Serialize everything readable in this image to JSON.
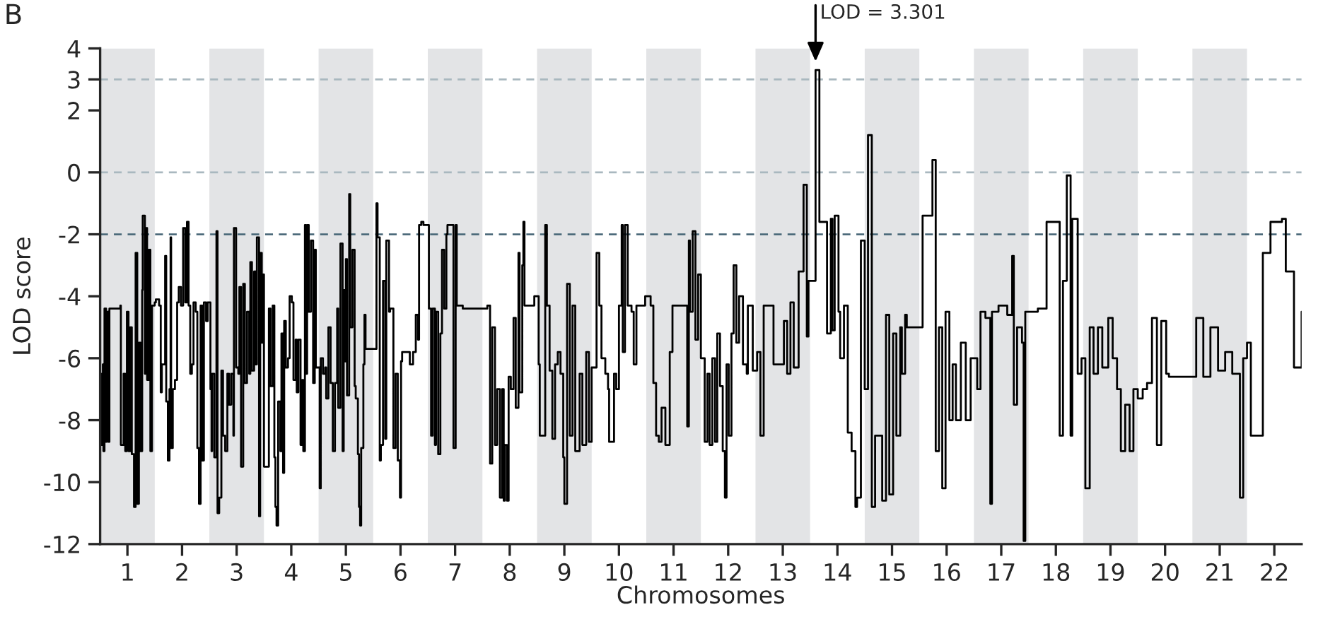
{
  "chart_data": {
    "type": "step",
    "xlabel": "Chromosomes",
    "ylabel": "LOD score",
    "xlim": [
      0.5,
      22.5
    ],
    "ylim": [
      -12,
      4
    ],
    "yticks": [
      4,
      3,
      2,
      0,
      -2,
      -4,
      -6,
      -8,
      -10,
      -12
    ],
    "xticks": [
      1,
      2,
      3,
      4,
      5,
      6,
      7,
      8,
      9,
      10,
      11,
      12,
      13,
      14,
      15,
      16,
      17,
      18,
      19,
      20,
      21,
      22
    ],
    "grid": false,
    "line_style": "solid",
    "marker": "none",
    "bands": [
      {
        "axis": "x",
        "from": 0.5,
        "to": 1.5,
        "color": "#e3e4e6"
      },
      {
        "axis": "x",
        "from": 2.5,
        "to": 3.5,
        "color": "#e3e4e6"
      },
      {
        "axis": "x",
        "from": 4.5,
        "to": 5.5,
        "color": "#e3e4e6"
      },
      {
        "axis": "x",
        "from": 6.5,
        "to": 7.5,
        "color": "#e3e4e6"
      },
      {
        "axis": "x",
        "from": 8.5,
        "to": 9.5,
        "color": "#e3e4e6"
      },
      {
        "axis": "x",
        "from": 10.5,
        "to": 11.5,
        "color": "#e3e4e6"
      },
      {
        "axis": "x",
        "from": 12.5,
        "to": 13.5,
        "color": "#e3e4e6"
      },
      {
        "axis": "x",
        "from": 14.5,
        "to": 15.5,
        "color": "#e3e4e6"
      },
      {
        "axis": "x",
        "from": 16.5,
        "to": 17.5,
        "color": "#e3e4e6"
      },
      {
        "axis": "x",
        "from": 18.5,
        "to": 19.5,
        "color": "#e3e4e6"
      },
      {
        "axis": "x",
        "from": 20.5,
        "to": 21.5,
        "color": "#e3e4e6"
      }
    ],
    "ref_lines": [
      {
        "axis": "y",
        "value": 3,
        "color": "#a9b8bf",
        "line_style": "dashed"
      },
      {
        "axis": "y",
        "value": 0,
        "color": "#a9b8bf",
        "line_style": "dashed"
      },
      {
        "axis": "y",
        "value": -2,
        "color": "#4d6b7b",
        "line_style": "dashed"
      }
    ],
    "annotations": [
      "B",
      {
        "text": "LOD = 3.301",
        "x": 13.6,
        "y": 3.301
      }
    ],
    "series": [
      {
        "color": "#000000",
        "x": [
          0.5,
          0.52,
          0.55,
          0.56,
          0.58,
          0.61,
          0.62,
          0.65,
          0.67,
          0.87,
          0.88,
          0.93,
          0.96,
          0.99,
          1.02,
          1.05,
          1.08,
          1.12,
          1.15,
          1.18,
          1.21,
          1.24,
          1.27,
          1.28,
          1.32,
          1.33,
          1.36,
          1.39,
          1.42,
          1.45,
          1.5,
          1.52,
          1.58,
          1.61,
          1.63,
          1.67,
          1.69,
          1.71,
          1.74,
          1.77,
          1.79,
          1.8,
          1.83,
          1.87,
          1.91,
          1.94,
          1.98,
          2.02,
          2.06,
          2.09,
          2.12,
          2.15,
          2.18,
          2.21,
          2.25,
          2.28,
          2.31,
          2.34,
          2.37,
          2.4,
          2.44,
          2.47,
          2.52,
          2.54,
          2.55,
          2.59,
          2.63,
          2.65,
          2.68,
          2.72,
          2.75,
          2.79,
          2.83,
          2.86,
          2.9,
          2.94,
          2.95,
          2.99,
          3.03,
          3.05,
          3.08,
          3.12,
          3.15,
          3.19,
          3.23,
          3.25,
          3.28,
          3.32,
          3.35,
          3.37,
          3.41,
          3.43,
          3.46,
          3.48,
          3.5,
          3.59,
          3.62,
          3.66,
          3.69,
          3.71,
          3.73,
          3.76,
          3.8,
          3.82,
          3.85,
          3.87,
          3.9,
          3.94,
          3.97,
          4.01,
          4.04,
          4.08,
          4.1,
          4.13,
          4.17,
          4.2,
          4.22,
          4.25,
          4.27,
          4.29,
          4.32,
          4.36,
          4.4,
          4.43,
          4.45,
          4.52,
          4.54,
          4.58,
          4.62,
          4.64,
          4.68,
          4.72,
          4.76,
          4.8,
          4.84,
          4.86,
          4.9,
          4.94,
          4.96,
          4.98,
          5.0,
          5.02,
          5.06,
          5.08,
          5.12,
          5.16,
          5.18,
          5.22,
          5.24,
          5.26,
          5.28,
          5.32,
          5.34,
          5.36,
          5.56,
          5.58,
          5.62,
          5.64,
          5.68,
          5.72,
          5.74,
          5.79,
          5.81,
          5.87,
          5.91,
          5.95,
          5.99,
          6.01,
          6.03,
          6.11,
          6.17,
          6.23,
          6.28,
          6.32,
          6.34,
          6.38,
          6.42,
          6.48,
          6.52,
          6.56,
          6.59,
          6.63,
          6.65,
          6.69,
          6.73,
          6.76,
          6.8,
          6.84,
          6.86,
          6.95,
          6.97,
          7.01,
          7.03,
          7.14,
          7.59,
          7.64,
          7.68,
          7.73,
          7.77,
          7.82,
          7.86,
          7.89,
          7.91,
          7.95,
          7.98,
          8.02,
          8.07,
          8.11,
          8.16,
          8.18,
          8.23,
          8.25,
          8.27,
          8.39,
          8.45,
          8.53,
          8.55,
          8.6,
          8.65,
          8.68,
          8.73,
          8.78,
          8.83,
          8.88,
          8.93,
          8.98,
          9.0,
          9.05,
          9.1,
          9.15,
          9.2,
          9.28,
          9.33,
          9.4,
          9.45,
          9.5,
          9.59,
          9.64,
          9.68,
          9.75,
          9.8,
          9.82,
          9.86,
          9.91,
          9.95,
          10.0,
          10.05,
          10.07,
          10.11,
          10.16,
          10.23,
          10.27,
          10.32,
          10.41,
          10.48,
          10.58,
          10.63,
          10.68,
          10.73,
          10.78,
          10.85,
          10.93,
          10.98,
          11.08,
          11.13,
          11.18,
          11.25,
          11.28,
          11.3,
          11.35,
          11.4,
          11.45,
          11.5,
          11.57,
          11.62,
          11.66,
          11.71,
          11.76,
          11.8,
          11.85,
          11.9,
          11.94,
          11.97,
          12.01,
          12.06,
          12.1,
          12.15,
          12.2,
          12.27,
          12.34,
          12.36,
          12.43,
          12.45,
          12.53,
          12.59,
          12.65,
          12.77,
          12.83,
          12.95,
          13.02,
          13.08,
          13.14,
          13.2,
          13.29,
          13.38,
          13.44,
          13.47,
          13.5,
          13.6,
          13.64,
          13.67,
          13.78,
          13.81,
          13.88,
          13.91,
          13.95,
          14.02,
          14.05,
          14.12,
          14.19,
          14.26,
          14.33,
          14.36,
          14.43,
          14.5,
          14.56,
          14.63,
          14.69,
          14.76,
          14.82,
          14.89,
          14.95,
          15.02,
          15.08,
          15.15,
          15.18,
          15.24,
          15.27,
          15.56,
          15.68,
          15.74,
          15.8,
          15.86,
          15.92,
          15.98,
          16.05,
          16.11,
          16.17,
          16.26,
          16.35,
          16.44,
          16.56,
          16.62,
          16.71,
          16.8,
          16.83,
          16.95,
          17.11,
          17.2,
          17.23,
          17.29,
          17.38,
          17.41,
          17.44,
          17.57,
          17.67,
          17.83,
          18.0,
          18.07,
          18.13,
          18.2,
          18.27,
          18.3,
          18.4,
          18.47,
          18.54,
          18.62,
          18.69,
          18.77,
          18.85,
          18.96,
          19.04,
          19.12,
          19.19,
          19.27,
          19.35,
          19.42,
          19.5,
          19.59,
          19.67,
          19.76,
          19.85,
          19.93,
          20.02,
          20.07,
          20.57,
          20.7,
          20.83,
          20.97,
          21.1,
          21.23,
          21.37,
          21.43,
          21.5,
          21.57,
          21.79,
          21.93,
          22.14,
          22.21,
          22.36,
          22.5
        ],
        "values": [
          -6.5,
          -8.8,
          -6.2,
          -9,
          -4.4,
          -8.7,
          -4.5,
          -8.7,
          -4.4,
          -4.3,
          -8.8,
          -6.5,
          -9.0,
          -4.5,
          -9,
          -5,
          -9.1,
          -10.8,
          -2.6,
          -10.7,
          -5.5,
          -9,
          -3.8,
          -1.4,
          -6.5,
          -1.8,
          -6.7,
          -2.5,
          -9,
          -4.3,
          -4.2,
          -4.1,
          -4.3,
          -7.1,
          -6.2,
          -6.2,
          -2.7,
          -7.4,
          -9.3,
          -7,
          -2.1,
          -8.9,
          -7,
          -6.7,
          -4.2,
          -3.7,
          -4.3,
          -1.8,
          -4.2,
          -1.6,
          -4.3,
          -6.5,
          -6.2,
          -4.2,
          -4.5,
          -8.9,
          -10.7,
          -4.3,
          -9.3,
          -4.2,
          -4.8,
          -4.2,
          -7,
          -9,
          -6.5,
          -9.2,
          -1.9,
          -11,
          -10.5,
          -6.4,
          -8.5,
          -9,
          -6.5,
          -7.5,
          -6.5,
          -8.5,
          -1.8,
          -6.3,
          -6.5,
          -3.7,
          -9.5,
          -3.6,
          -6.8,
          -4.5,
          -6.5,
          -2.9,
          -6.4,
          -3.2,
          -6.2,
          -2.1,
          -11.1,
          -2.6,
          -5.5,
          -3.3,
          -9.5,
          -4.4,
          -6.9,
          -4.3,
          -9.2,
          -10.8,
          -11.4,
          -7.4,
          -9,
          -5.2,
          -9.7,
          -4.8,
          -6.3,
          -6,
          -4.0,
          -4.2,
          -6.7,
          -5.4,
          -7.1,
          -5.4,
          -8.8,
          -6.7,
          -9.0,
          -1.7,
          -6.5,
          -1.7,
          -4.5,
          -2.2,
          -6.8,
          -2.5,
          -6.3,
          -10.2,
          -6.0,
          -6.5,
          -6.3,
          -7.3,
          -5.0,
          -6.8,
          -9.0,
          -6.8,
          -4.4,
          -7.6,
          -2.3,
          -9,
          -3.8,
          -6.1,
          -2.8,
          -7.2,
          -0.7,
          -5.0,
          -2.5,
          -6.9,
          -7.3,
          -9.1,
          -10.8,
          -11.4,
          -8.9,
          -6.2,
          -4.6,
          -5.7,
          -1.0,
          -2.1,
          -9.3,
          -8.8,
          -3.5,
          -8.6,
          -2.2,
          -4.5,
          -4.4,
          -8.9,
          -6.5,
          -9.3,
          -10.5,
          -6.1,
          -5.8,
          -5.8,
          -6.2,
          -5.8,
          -4.6,
          -5.4,
          -1.7,
          -1.6,
          -1.7,
          -1.7,
          -4.4,
          -8.5,
          -4.4,
          -8.8,
          -4.5,
          -9.1,
          -5.2,
          -2.5,
          -4.4,
          -2.0,
          -1.7,
          -1.7,
          -8.9,
          -1.7,
          -4.3,
          -4.4,
          -4.3,
          -9.4,
          -5.0,
          -8.8,
          -7.0,
          -10.5,
          -7,
          -10.6,
          -8.8,
          -10.6,
          -6.6,
          -7.0,
          -4.7,
          -7.6,
          -2.6,
          -7.1,
          -3.0,
          -1.6,
          -4.3,
          -4.3,
          -4.0,
          -6.2,
          -8.5,
          -8.5,
          -1.7,
          -4.3,
          -6.4,
          -8.6,
          -6.2,
          -5.8,
          -6.5,
          -9.2,
          -10.7,
          -3.6,
          -8.5,
          -4.3,
          -9,
          -6.5,
          -8.8,
          -5.8,
          -8.7,
          -6.3,
          -2.6,
          -4.3,
          -6.0,
          -6.5,
          -7.0,
          -8.7,
          -8.7,
          -6.5,
          -7.0,
          -4.3,
          -1.7,
          -5.8,
          -1.7,
          -4.3,
          -4.5,
          -6.2,
          -4.3,
          -4.3,
          -4.0,
          -4.3,
          -6.8,
          -8.5,
          -8.7,
          -7.6,
          -8.8,
          -5.8,
          -4.3,
          -4.3,
          -4.3,
          -4.3,
          -8.2,
          -2.2,
          -4.5,
          -1.9,
          -5.4,
          -3.3,
          -6.0,
          -8.7,
          -6.5,
          -8.8,
          -6.0,
          -8.7,
          -5.2,
          -6.9,
          -9.0,
          -10.5,
          -6.2,
          -8.5,
          -5.2,
          -3.0,
          -5.5,
          -4.0,
          -6.2,
          -6.5,
          -4.3,
          -4.3,
          -6.4,
          -5.8,
          -8.5,
          -4.3,
          -4.3,
          -6.2,
          -6.2,
          -4.8,
          -6.5,
          -4.2,
          -6.3,
          -3.2,
          -0.4,
          -5.3,
          -3.5,
          -3.5,
          3.301,
          3.301,
          -1.6,
          -1.6,
          -5.2,
          -1.5,
          -5.1,
          -1.4,
          -4.5,
          -6.0,
          -4.3,
          -8.4,
          -9.0,
          -10.8,
          -10.5,
          -2.2,
          -7.0,
          1.2,
          -10.8,
          -8.5,
          -8.5,
          -10.6,
          -4.6,
          -10.4,
          -5.2,
          -8.5,
          -5.0,
          -6.5,
          -4.6,
          -5.0,
          -1.4,
          -1.4,
          0.4,
          -9.0,
          -5.0,
          -10.2,
          -4.5,
          -8.0,
          -6.2,
          -8.0,
          -5.5,
          -8.0,
          -6.0,
          -7.0,
          -4.5,
          -4.7,
          -10.7,
          -4.5,
          -4.3,
          -4.6,
          -2.7,
          -7.5,
          -5.0,
          -5.5,
          -11.9,
          -4.5,
          -4.5,
          -4.4,
          -1.6,
          -1.6,
          -8.5,
          -3.5,
          -0.1,
          -8.5,
          -1.5,
          -6.5,
          -6.0,
          -10.2,
          -5.0,
          -6.5,
          -5.0,
          -6.3,
          -4.7,
          -6.0,
          -7.0,
          -9.0,
          -7.5,
          -9.0,
          -7.0,
          -7.3,
          -7.0,
          -6.8,
          -4.7,
          -8.8,
          -4.8,
          -6.5,
          -6.6,
          -4.7,
          -6.6,
          -5.0,
          -6.4,
          -5.8,
          -6.5,
          -10.5,
          -6.0,
          -5.5,
          -8.5,
          -2.6,
          -1.6,
          -1.5,
          -3.2,
          -6.3,
          -4.5
        ]
      }
    ]
  }
}
